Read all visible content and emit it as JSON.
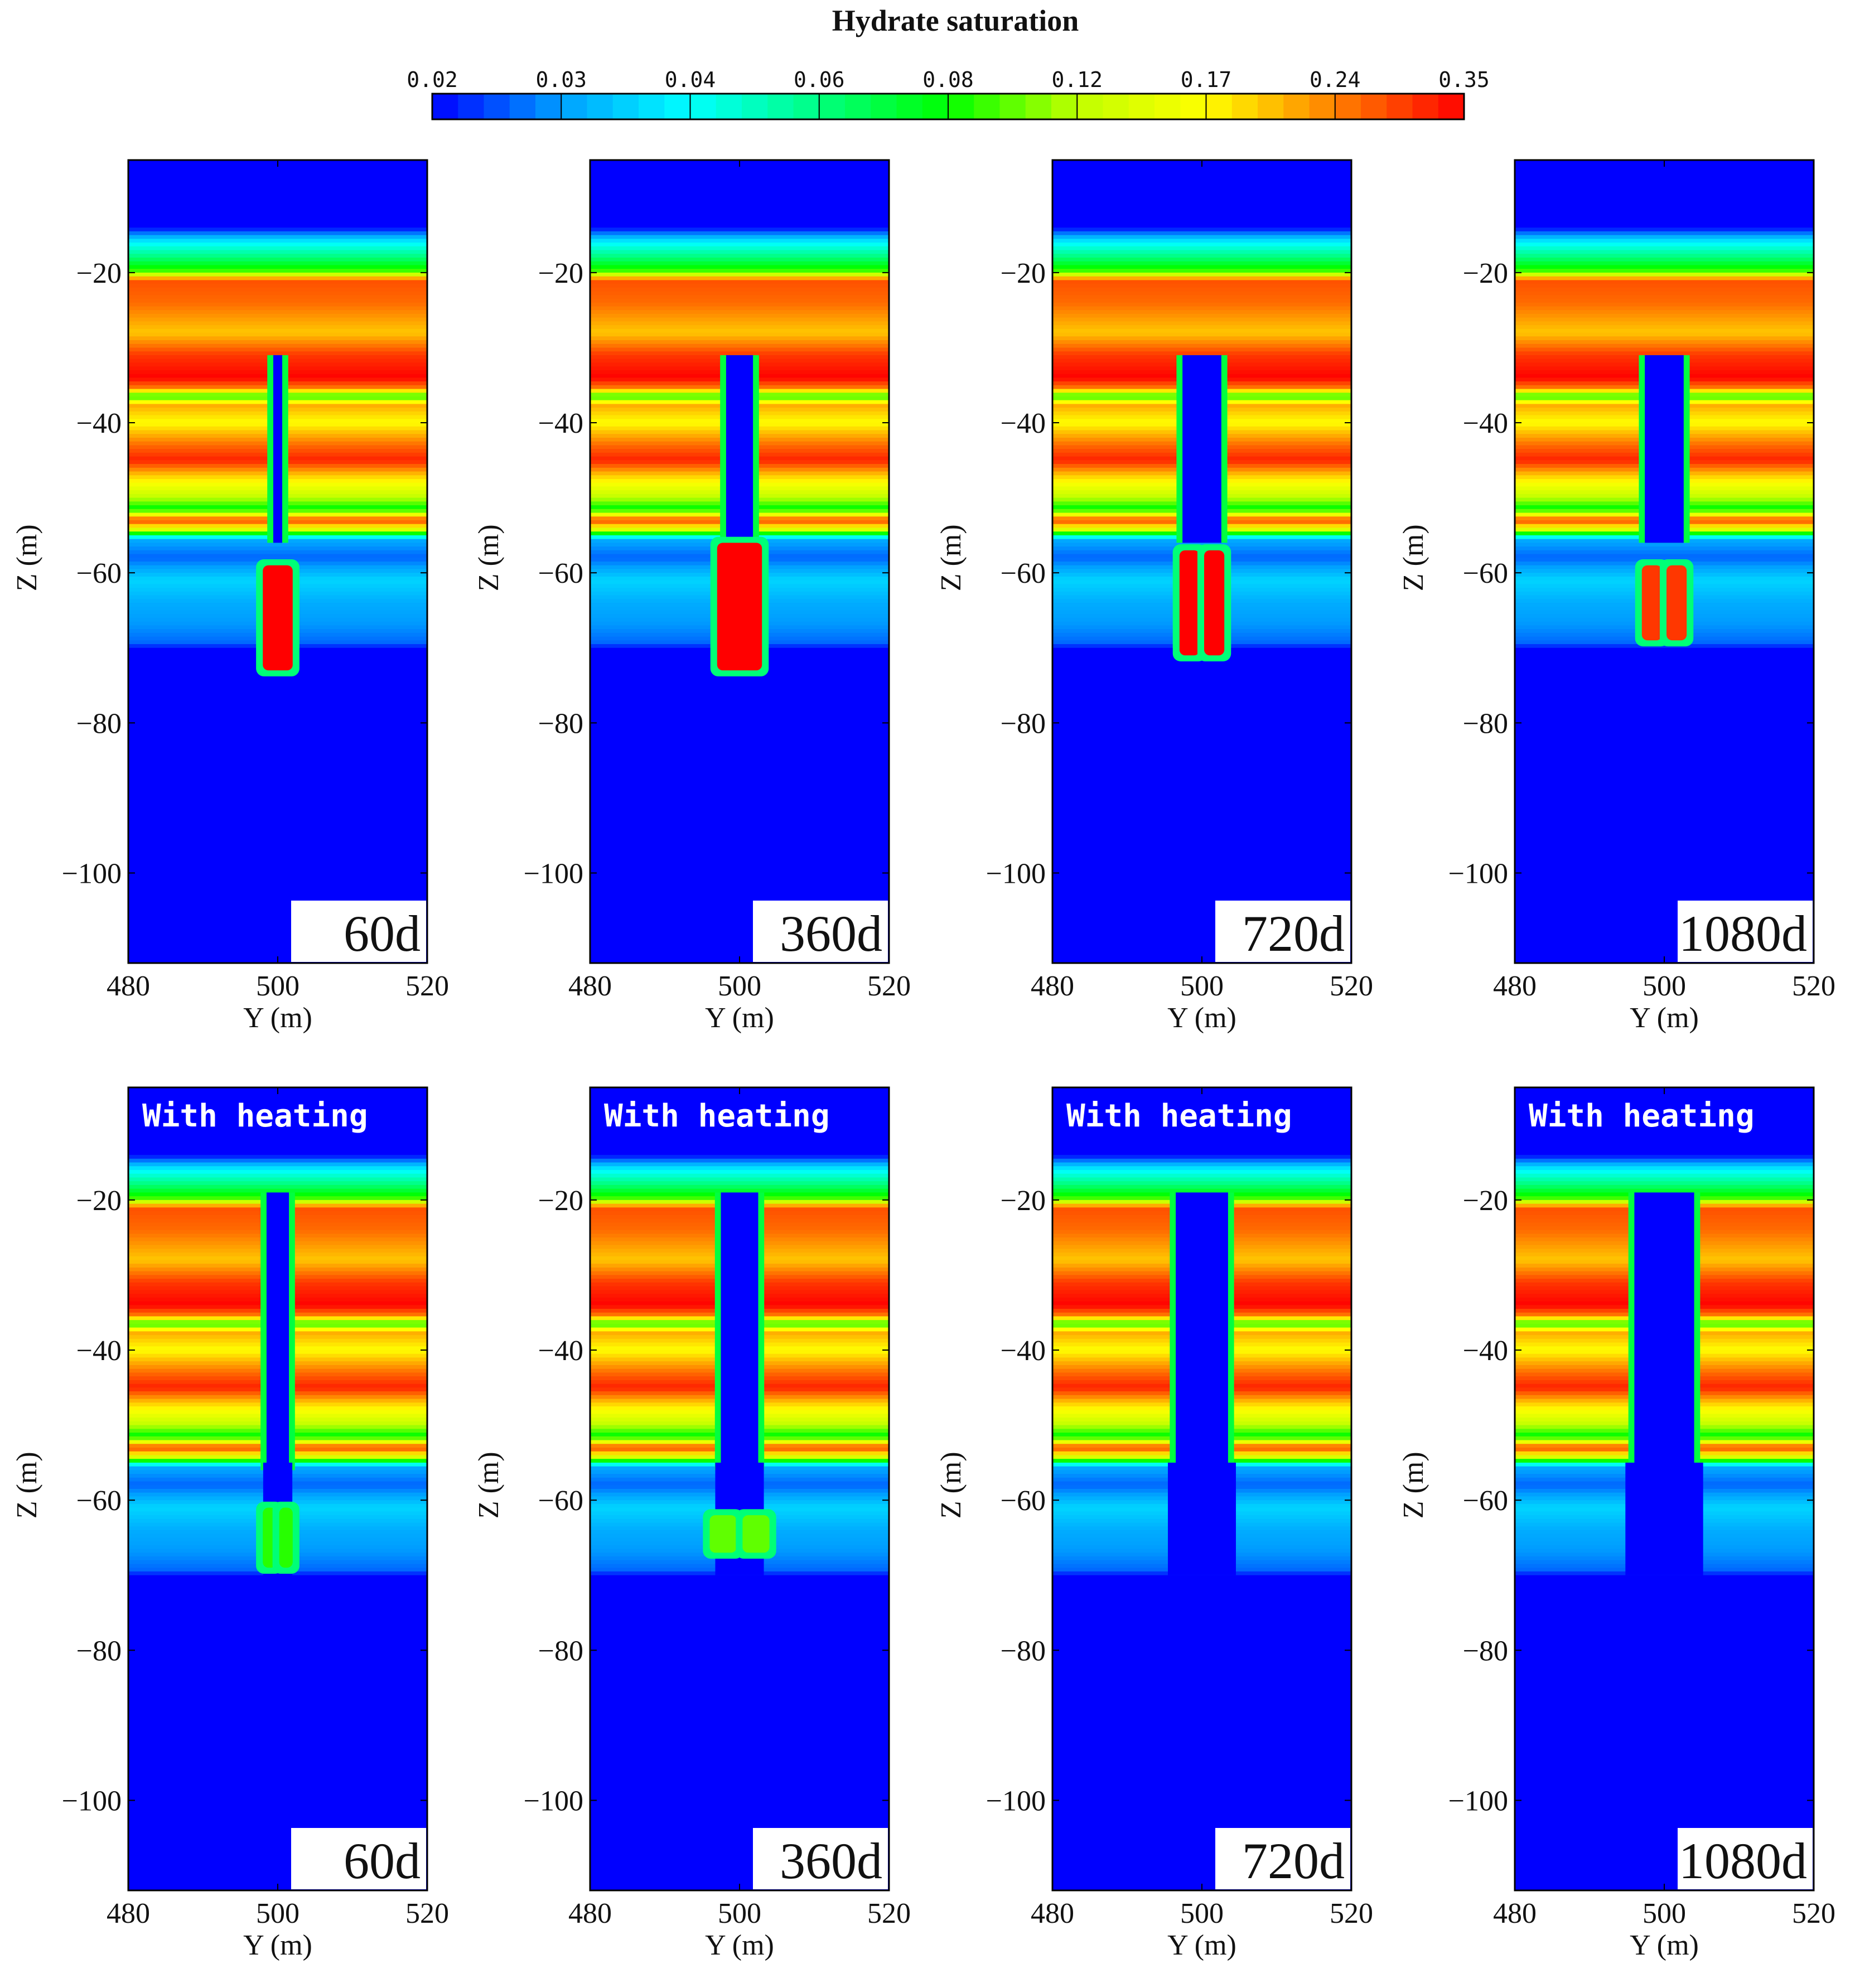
{
  "chart_data": {
    "type": "heatmap",
    "title": "Hydrate saturation",
    "colorbar": {
      "ticks": [
        "0.02",
        "0.03",
        "0.04",
        "0.06",
        "0.08",
        "0.12",
        "0.17",
        "0.24",
        "0.35"
      ],
      "scale": "log",
      "colors": [
        "#0000ff",
        "#00a0ff",
        "#00ffff",
        "#00ff80",
        "#00ff00",
        "#c0ff00",
        "#ffff00",
        "#ff8000",
        "#ff0000"
      ]
    },
    "xlabel": "Y (m)",
    "ylabel": "Z (m)",
    "xlim": [
      480,
      520
    ],
    "ylim": [
      -112,
      -5
    ],
    "xticks": [
      "480",
      "500",
      "520"
    ],
    "yticks": [
      "−20",
      "−40",
      "−60",
      "−80",
      "−100"
    ],
    "panels": [
      {
        "time": "60d",
        "heating": false,
        "caption": "",
        "channel_halfwidth": 0.6,
        "lower_plume": {
          "halfwidth": 2.0,
          "top": -59,
          "bottom": -73,
          "max": 0.35,
          "split": false
        }
      },
      {
        "time": "360d",
        "heating": false,
        "caption": "",
        "channel_halfwidth": 1.8,
        "lower_plume": {
          "halfwidth": 3.0,
          "top": -56,
          "bottom": -73,
          "max": 0.35,
          "split": false
        }
      },
      {
        "time": "720d",
        "heating": false,
        "caption": "",
        "channel_halfwidth": 2.6,
        "lower_plume": {
          "halfwidth": 3.0,
          "top": -57,
          "bottom": -71,
          "max": 0.35,
          "split": true
        }
      },
      {
        "time": "1080d",
        "heating": false,
        "caption": "",
        "channel_halfwidth": 2.6,
        "lower_plume": {
          "halfwidth": 3.0,
          "top": -59,
          "bottom": -69,
          "max": 0.3,
          "split": true
        }
      },
      {
        "time": "60d",
        "heating": true,
        "caption": "With heating",
        "channel_halfwidth": 1.5,
        "lower_plume": {
          "halfwidth": 2.0,
          "top": -61,
          "bottom": -69,
          "max": 0.09,
          "split": true
        }
      },
      {
        "time": "360d",
        "heating": true,
        "caption": "With heating",
        "channel_halfwidth": 2.5,
        "lower_plume": {
          "halfwidth": 4.0,
          "top": -62,
          "bottom": -67,
          "max": 0.1,
          "split": true
        }
      },
      {
        "time": "720d",
        "heating": true,
        "caption": "With heating",
        "channel_halfwidth": 3.5,
        "lower_plume": null
      },
      {
        "time": "1080d",
        "heating": true,
        "caption": "With heating",
        "channel_halfwidth": 4.0,
        "lower_plume": null
      }
    ],
    "vertical_profile": [
      {
        "z": -5,
        "s": 0.02
      },
      {
        "z": -14,
        "s": 0.02
      },
      {
        "z": -16,
        "s": 0.04
      },
      {
        "z": -18,
        "s": 0.06
      },
      {
        "z": -20,
        "s": 0.1
      },
      {
        "z": -21,
        "s": 0.28
      },
      {
        "z": -24,
        "s": 0.26
      },
      {
        "z": -28,
        "s": 0.2
      },
      {
        "z": -31,
        "s": 0.3
      },
      {
        "z": -34,
        "s": 0.35
      },
      {
        "z": -35.5,
        "s": 0.24
      },
      {
        "z": -36.5,
        "s": 0.08
      },
      {
        "z": -37.5,
        "s": 0.22
      },
      {
        "z": -40,
        "s": 0.17
      },
      {
        "z": -43,
        "s": 0.26
      },
      {
        "z": -45,
        "s": 0.32
      },
      {
        "z": -47,
        "s": 0.2
      },
      {
        "z": -50,
        "s": 0.12
      },
      {
        "z": -51.5,
        "s": 0.08
      },
      {
        "z": -53,
        "s": 0.3
      },
      {
        "z": -54.5,
        "s": 0.12
      },
      {
        "z": -55.5,
        "s": 0.03
      },
      {
        "z": -58,
        "s": 0.025
      },
      {
        "z": -61,
        "s": 0.035
      },
      {
        "z": -64,
        "s": 0.03
      },
      {
        "z": -67,
        "s": 0.028
      },
      {
        "z": -69.5,
        "s": 0.025
      },
      {
        "z": -70,
        "s": 0.02
      },
      {
        "z": -112,
        "s": 0.02
      }
    ]
  }
}
